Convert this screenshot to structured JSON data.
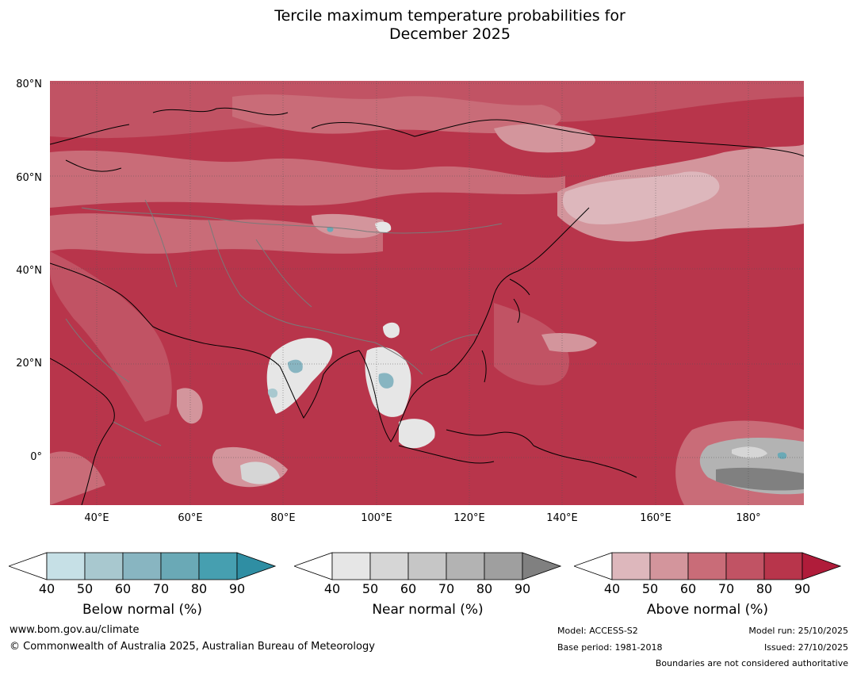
{
  "title_line1": "Tercile maximum temperature probabilities for",
  "title_line2": "December 2025",
  "map": {
    "lat_labels": [
      "80°N",
      "60°N",
      "40°N",
      "20°N",
      "0°"
    ],
    "lon_labels": [
      "40°E",
      "60°E",
      "80°E",
      "100°E",
      "120°E",
      "140°E",
      "160°E",
      "180°"
    ],
    "colors": {
      "above": [
        "#ddb7bc",
        "#d3959c",
        "#c96c78",
        "#c15364",
        "#b8354b",
        "#b01c3a"
      ],
      "near": [
        "#e6e6e6",
        "#d6d6d6",
        "#c6c6c6",
        "#b3b3b3",
        "#9f9f9f",
        "#808080"
      ],
      "below": [
        "#c6e0e6",
        "#a8c8cf",
        "#88b5c1",
        "#6aa9b6",
        "#469fb0",
        "#2f8ea3"
      ]
    }
  },
  "colorbars": [
    {
      "label": "Below normal (%)",
      "ticks": [
        "40",
        "50",
        "60",
        "70",
        "80",
        "90"
      ],
      "colors": [
        "#c6e0e6",
        "#a8c8cf",
        "#88b5c1",
        "#6aa9b6",
        "#469fb0",
        "#2f8ea3"
      ]
    },
    {
      "label": "Near normal (%)",
      "ticks": [
        "40",
        "50",
        "60",
        "70",
        "80",
        "90"
      ],
      "colors": [
        "#e6e6e6",
        "#d6d6d6",
        "#c6c6c6",
        "#b3b3b3",
        "#9f9f9f",
        "#808080"
      ]
    },
    {
      "label": "Above normal (%)",
      "ticks": [
        "40",
        "50",
        "60",
        "70",
        "80",
        "90"
      ],
      "colors": [
        "#ddb7bc",
        "#d3959c",
        "#c96c78",
        "#c15364",
        "#b8354b",
        "#b01c3a"
      ]
    }
  ],
  "footer": {
    "website": "www.bom.gov.au/climate",
    "copyright": "© Commonwealth of Australia 2025, Australian Bureau of Meteorology",
    "model": "Model: ACCESS-S2",
    "base_period": "Base period: 1981-2018",
    "model_run": "Model run: 25/10/2025",
    "issued": "Issued: 27/10/2025",
    "disclaimer": "Boundaries are not considered authoritative"
  }
}
